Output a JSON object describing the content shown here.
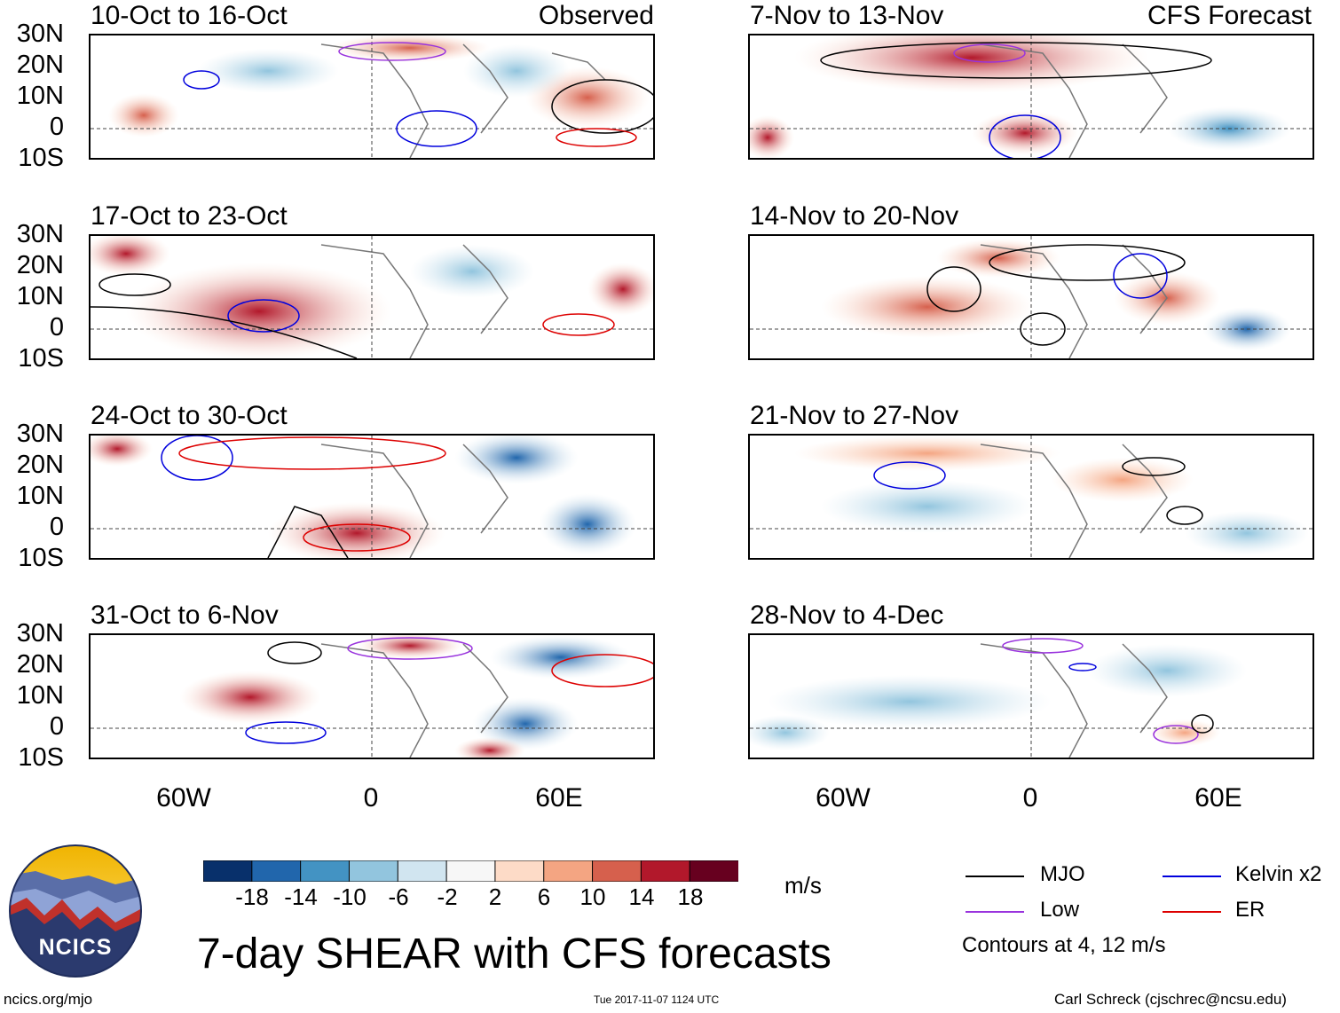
{
  "headers": {
    "observed": "Observed",
    "forecast": "CFS Forecast"
  },
  "panels": {
    "observed": [
      {
        "title": "10-Oct to 16-Oct"
      },
      {
        "title": "17-Oct to 23-Oct"
      },
      {
        "title": "24-Oct to 30-Oct"
      },
      {
        "title": "31-Oct to 6-Nov"
      }
    ],
    "forecast": [
      {
        "title": "7-Nov to 13-Nov"
      },
      {
        "title": "14-Nov to 20-Nov"
      },
      {
        "title": "21-Nov to 27-Nov"
      },
      {
        "title": "28-Nov to 4-Dec"
      }
    ]
  },
  "lat_ticks": [
    "30N",
    "20N",
    "10N",
    "0",
    "10S"
  ],
  "lon_ticks": [
    "60W",
    "0",
    "60E"
  ],
  "colorbar": {
    "unit": "m/s",
    "colors": [
      "#08306b",
      "#2166ac",
      "#4393c3",
      "#92c5de",
      "#d1e5f0",
      "#f7f7f7",
      "#fddbc7",
      "#f4a582",
      "#d6604d",
      "#b2182b",
      "#67001f"
    ],
    "labels": [
      "-18",
      "-14",
      "-10",
      "-6",
      "-2",
      "2",
      "6",
      "10",
      "14",
      "18"
    ]
  },
  "legend": {
    "items": [
      {
        "label": "MJO",
        "color": "#000000"
      },
      {
        "label": "Kelvin x2",
        "color": "#0000dd"
      },
      {
        "label": "Low",
        "color": "#9933dd"
      },
      {
        "label": "ER",
        "color": "#dd0000"
      }
    ],
    "contours_note": "Contours at 4, 12 m/s"
  },
  "title": "7-day SHEAR with CFS forecasts",
  "logo_text": "NCICS",
  "footer": {
    "url": "ncics.org/mjo",
    "timestamp": "Tue 2017-11-07 1124 UTC",
    "credit": "Carl Schreck (cjschrec@ncsu.edu)"
  }
}
